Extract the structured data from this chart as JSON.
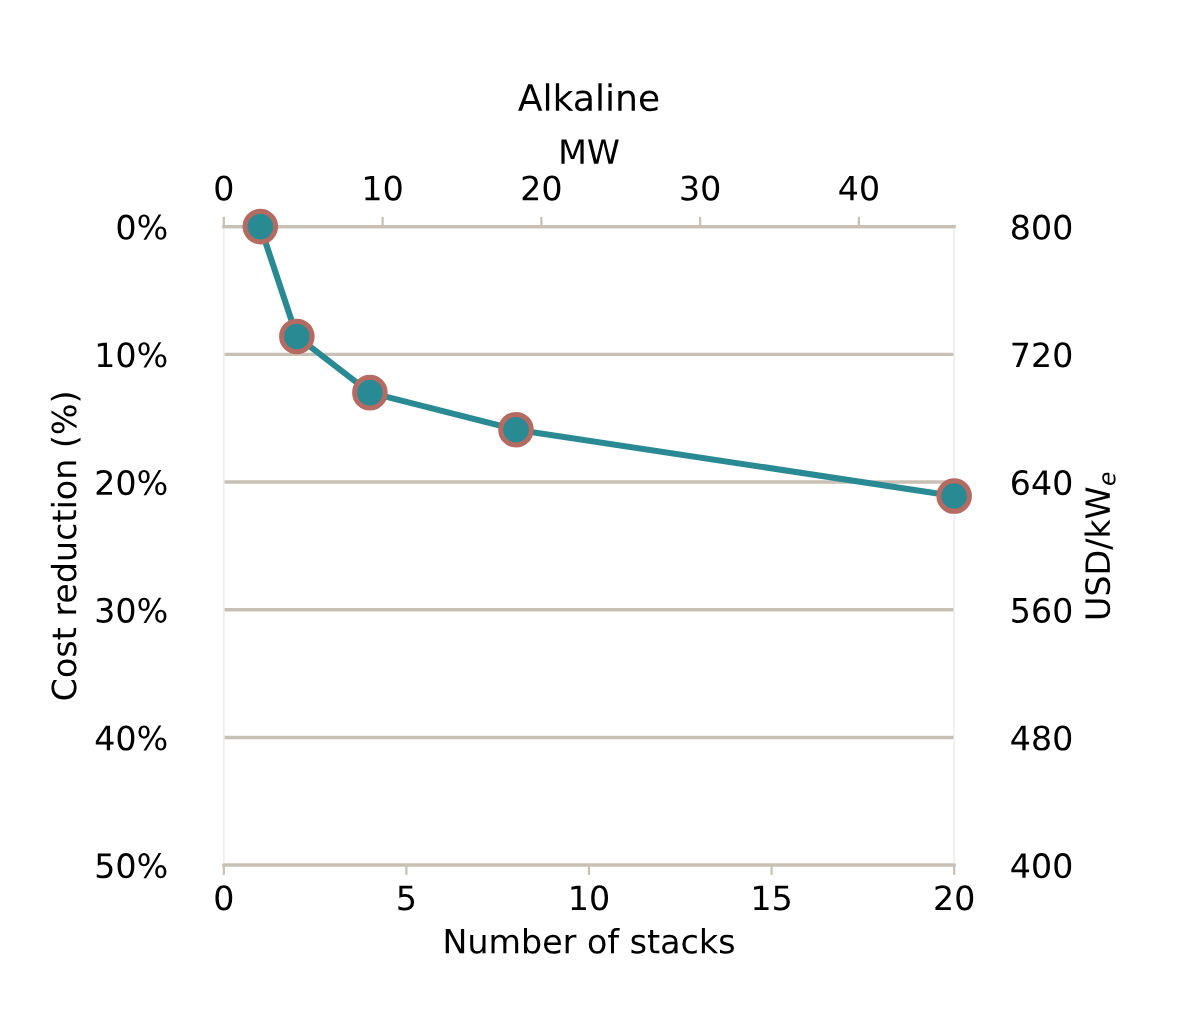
{
  "chart_data": {
    "type": "line",
    "title": "Alkaline",
    "xlabel": "Number of stacks",
    "ylabel": "Cost reduction (%)",
    "y2label": "USD/kW$_{e}$",
    "x2label": "MW",
    "x": [
      1,
      2,
      4,
      8,
      20
    ],
    "series": [
      {
        "color": "#2a8a94",
        "values": [
          0,
          8.6,
          13.0,
          15.9,
          21.1
        ]
      }
    ],
    "marker": "circle",
    "line_style": "solid",
    "grid": "y",
    "xlim": [
      0,
      20
    ],
    "xticks": [
      0,
      5,
      10,
      15,
      20
    ],
    "x2lim": [
      0,
      46
    ],
    "x2ticks": [
      0,
      10,
      20,
      30,
      40
    ],
    "ylim": [
      50,
      0
    ],
    "yticks": [
      {
        "value": 0,
        "label": "0%"
      },
      {
        "value": 10,
        "label": "10%"
      },
      {
        "value": 20,
        "label": "20%"
      },
      {
        "value": 30,
        "label": "30%"
      },
      {
        "value": 40,
        "label": "40%"
      },
      {
        "value": 50,
        "label": "50%"
      }
    ],
    "y2lim": [
      400,
      800
    ],
    "y2ticks": [
      400,
      480,
      560,
      640,
      720,
      800
    ]
  }
}
